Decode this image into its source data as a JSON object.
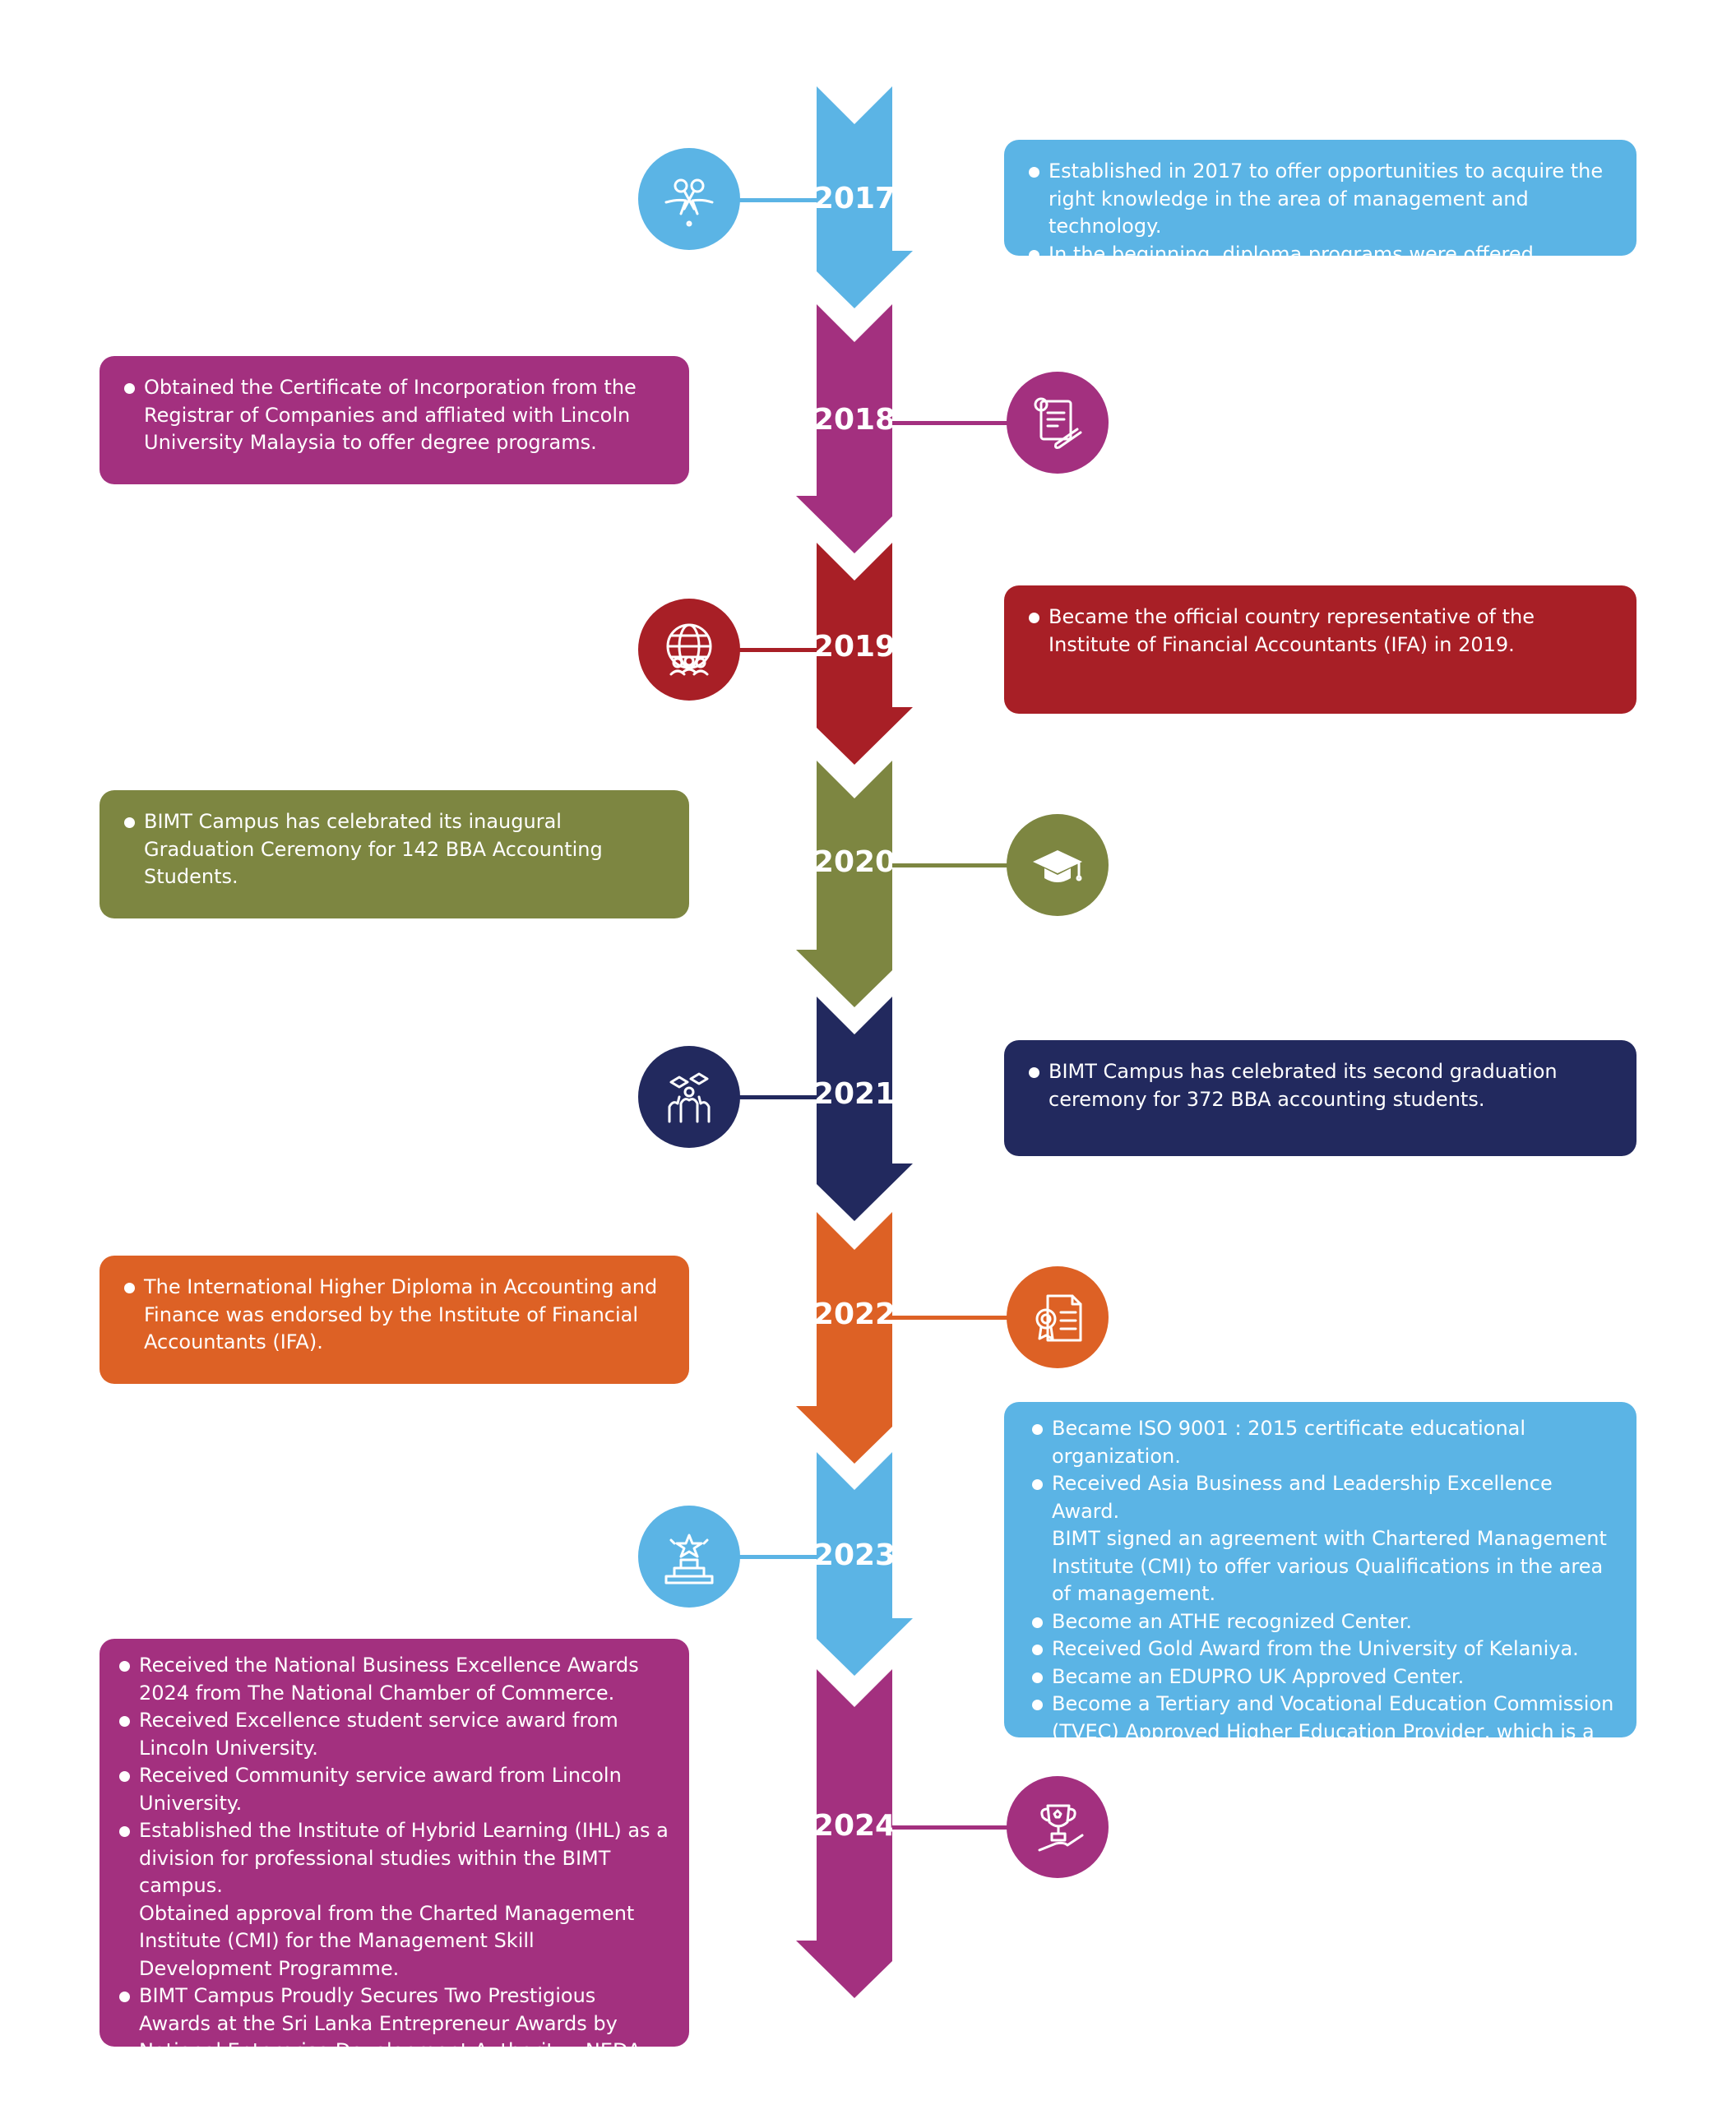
{
  "colors": {
    "blue": "#5bb4e5",
    "purple": "#a3307f",
    "red": "#a81f26",
    "olive": "#7d8641",
    "navy": "#22295e",
    "orange": "#dd6125"
  },
  "timeline": [
    {
      "year": "2017",
      "color": "#5bb4e5",
      "icon": "ribbon-cutting-icon",
      "points": [
        {
          "text": "Established in 2017 to offer opportunities to acquire the right knowledge in the area of management and technology.",
          "bullet": true
        },
        {
          "text": "In the beginning, diploma programs were offered.",
          "bullet": true
        }
      ]
    },
    {
      "year": "2018",
      "color": "#a3307f",
      "icon": "certificate-diploma-icon",
      "points": [
        {
          "text": "Obtained the Certificate of Incorporation from the Registrar of Companies and affliated with Lincoln University Malaysia to offer degree programs.",
          "bullet": true
        }
      ]
    },
    {
      "year": "2019",
      "color": "#a81f26",
      "icon": "global-community-icon",
      "points": [
        {
          "text": "Became the official country representative of the Institute of Financial Accountants (IFA) in 2019.",
          "bullet": true
        }
      ]
    },
    {
      "year": "2020",
      "color": "#7d8641",
      "icon": "graduation-cap-icon",
      "points": [
        {
          "text": "BIMT Campus has celebrated its inaugural Graduation Ceremony for 142 BBA Accounting Students.",
          "bullet": true
        }
      ]
    },
    {
      "year": "2021",
      "color": "#22295e",
      "icon": "celebrating-graduates-icon",
      "points": [
        {
          "text": "BIMT Campus has celebrated its second graduation ceremony for 372 BBA accounting students.",
          "bullet": true
        }
      ]
    },
    {
      "year": "2022",
      "color": "#dd6125",
      "icon": "certificate-seal-icon",
      "points": [
        {
          "text": "The International Higher Diploma in Accounting and Finance was endorsed by the Institute of Financial Accountants (IFA).",
          "bullet": true
        }
      ]
    },
    {
      "year": "2023",
      "color": "#5bb4e5",
      "icon": "award-podium-star-icon",
      "points": [
        {
          "text": "Became ISO 9001 : 2015 certificate educational organization.",
          "bullet": true
        },
        {
          "text": "Received Asia Business and Leadership Excellence Award.",
          "bullet": true
        },
        {
          "text": "BIMT signed an agreement with Chartered Management Institute (CMI) to offer various Qualifications in the area of management.",
          "bullet": false
        },
        {
          "text": "Become an ATHE recognized Center.",
          "bullet": true
        },
        {
          "text": "Received Gold Award from the University of Kelaniya.",
          "bullet": true
        },
        {
          "text": "Became an EDUPRO UK Approved Center.",
          "bullet": true
        },
        {
          "text": "Become a Tertiary and Vocational Education Commission (TVEC) Approved Higher Education Provider, which is a government apex body.",
          "bullet": true
        }
      ]
    },
    {
      "year": "2024",
      "color": "#a3307f",
      "icon": "trophy-hand-icon",
      "points": [
        {
          "text": "Received the National Business Excellence Awards 2024 from The National Chamber of Commerce.",
          "bullet": true
        },
        {
          "text": "Received Excellence student service award from Lincoln University.",
          "bullet": true
        },
        {
          "text": "Received Community service award from Lincoln University.",
          "bullet": true
        },
        {
          "text": "Established the Institute of Hybrid Learning (IHL) as a division for professional studies within the BIMT campus.",
          "bullet": true
        },
        {
          "text": "Obtained approval from the Charted Management Institute (CMI) for the Management Skill Development Programme.",
          "bullet": false
        },
        {
          "text": "BIMT Campus Proudly Secures Two Prestigious Awards at the Sri Lanka Entrepreneur Awards by National Enterprise Development Authority - NEDA.",
          "bullet": true
        }
      ]
    }
  ]
}
